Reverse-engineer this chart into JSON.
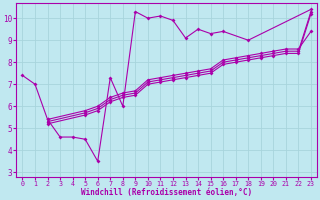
{
  "bg_color": "#c0e8f0",
  "grid_color": "#a8d4dc",
  "line_color": "#aa00aa",
  "xlabel": "Windchill (Refroidissement éolien,°C)",
  "xlim": [
    -0.5,
    23.5
  ],
  "ylim": [
    2.8,
    10.7
  ],
  "yticks": [
    3,
    4,
    5,
    6,
    7,
    8,
    9,
    10
  ],
  "xticks": [
    0,
    1,
    2,
    3,
    4,
    5,
    6,
    7,
    8,
    9,
    10,
    11,
    12,
    13,
    14,
    15,
    16,
    17,
    18,
    19,
    20,
    21,
    22,
    23
  ],
  "curve_main_x": [
    0,
    1,
    2,
    3,
    4,
    5,
    6,
    7,
    8,
    9,
    10,
    11,
    12,
    13,
    14,
    15,
    16,
    18,
    23
  ],
  "curve_main_y": [
    7.4,
    7.0,
    5.4,
    4.6,
    4.6,
    4.5,
    3.5,
    7.3,
    6.0,
    10.3,
    10.0,
    10.1,
    9.9,
    9.1,
    9.5,
    9.3,
    9.4,
    9.0,
    10.4
  ],
  "diag1_x": [
    2,
    5,
    6,
    7,
    8,
    9,
    10,
    11,
    12,
    13,
    14,
    15,
    16,
    17,
    18,
    19,
    20,
    21,
    22,
    23
  ],
  "diag1_y": [
    5.4,
    5.8,
    6.0,
    6.4,
    6.6,
    6.7,
    7.2,
    7.3,
    7.4,
    7.5,
    7.6,
    7.7,
    8.1,
    8.2,
    8.3,
    8.4,
    8.5,
    8.6,
    8.6,
    9.4
  ],
  "diag2_x": [
    2,
    5,
    6,
    7,
    8,
    9,
    10,
    11,
    12,
    13,
    14,
    15,
    16,
    17,
    18,
    19,
    20,
    21,
    22,
    23
  ],
  "diag2_y": [
    5.3,
    5.7,
    5.9,
    6.3,
    6.5,
    6.6,
    7.1,
    7.2,
    7.3,
    7.4,
    7.5,
    7.6,
    8.0,
    8.1,
    8.2,
    8.3,
    8.4,
    8.5,
    8.5,
    10.3
  ],
  "diag3_x": [
    2,
    5,
    6,
    7,
    8,
    9,
    10,
    11,
    12,
    13,
    14,
    15,
    16,
    17,
    18,
    19,
    20,
    21,
    22,
    23
  ],
  "diag3_y": [
    5.2,
    5.6,
    5.8,
    6.2,
    6.4,
    6.5,
    7.0,
    7.1,
    7.2,
    7.3,
    7.4,
    7.5,
    7.9,
    8.0,
    8.1,
    8.2,
    8.3,
    8.4,
    8.4,
    10.2
  ]
}
